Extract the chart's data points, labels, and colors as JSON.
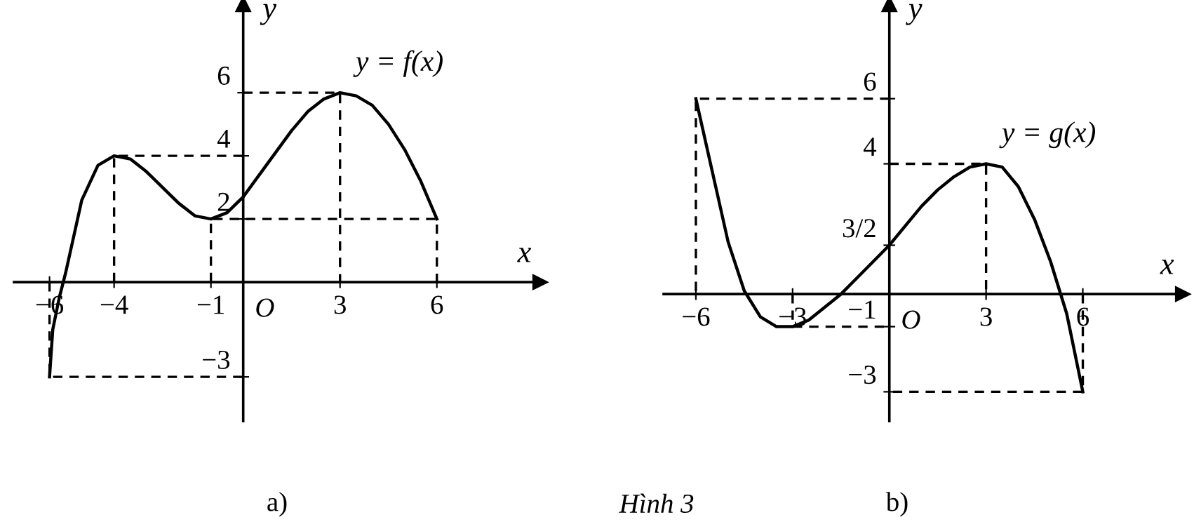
{
  "chart_data": [
    {
      "type": "line",
      "xlabel": "x",
      "ylabel": "y",
      "xlim": [
        -7.1,
        9.2
      ],
      "ylim": [
        -4.4,
        8.8
      ],
      "xticks": [
        {
          "value": -6,
          "label": "−6"
        },
        {
          "value": -4,
          "label": "−4"
        },
        {
          "value": -1,
          "label": "−1"
        },
        3,
        6
      ],
      "yticks": [
        {
          "value": -3,
          "label": "−3"
        },
        2,
        4,
        6
      ],
      "grid": false,
      "legend": false,
      "marker": "none",
      "series": [
        {
          "color": "#000000",
          "line_style": "solid",
          "x": [
            -6,
            -5.9,
            -5.7,
            -5.5,
            -5,
            -4.5,
            -4,
            -3.5,
            -3,
            -2.5,
            -2,
            -1.5,
            -1,
            -0.5,
            0,
            0.5,
            1,
            1.5,
            2,
            2.5,
            3,
            3.5,
            4,
            4.5,
            5,
            5.5,
            6
          ],
          "values": [
            -3,
            -1.5,
            -0.5,
            0.3,
            2.6,
            3.7,
            4,
            3.9,
            3.5,
            3.0,
            2.5,
            2.1,
            2,
            2.2,
            2.7,
            3.4,
            4.1,
            4.8,
            5.4,
            5.8,
            6,
            5.9,
            5.6,
            5.0,
            4.2,
            3.2,
            2
          ]
        },
        {
          "color": "#000000",
          "line_style": "dashed",
          "x": [
            -6,
            -6,
            0
          ],
          "values": [
            0,
            -3,
            -3
          ]
        },
        {
          "color": "#000000",
          "line_style": "dashed",
          "x": [
            -4,
            -4,
            0
          ],
          "values": [
            0,
            4,
            4
          ]
        },
        {
          "color": "#000000",
          "line_style": "dashed",
          "x": [
            -1,
            -1,
            6,
            6
          ],
          "values": [
            0,
            2,
            2,
            0
          ]
        },
        {
          "color": "#000000",
          "line_style": "dashed",
          "x": [
            0,
            3,
            3
          ],
          "values": [
            6,
            6,
            0
          ]
        }
      ],
      "annotations": [
        {
          "text": "y = f(x)",
          "x": 3,
          "y": 6
        },
        "O",
        "a)"
      ]
    },
    {
      "type": "line",
      "xlabel": "x",
      "ylabel": "y",
      "xlim": [
        -7.0,
        9.1
      ],
      "ylim": [
        -3.9,
        8.9
      ],
      "xticks": [
        {
          "value": -6,
          "label": "−6"
        },
        {
          "value": -3,
          "label": "−3"
        },
        3,
        6
      ],
      "yticks": [
        {
          "value": -3,
          "label": "−3"
        },
        {
          "value": -1,
          "label": "−1"
        },
        {
          "value": 1.5,
          "label": "3/2"
        },
        4,
        6
      ],
      "grid": false,
      "legend": false,
      "marker": "none",
      "series": [
        {
          "color": "#000000",
          "line_style": "solid",
          "x": [
            -6,
            -5.5,
            -5,
            -4.5,
            -4,
            -3.5,
            -3,
            -2.5,
            -2,
            -1.5,
            -1,
            -0.5,
            0,
            0.5,
            1,
            1.5,
            2,
            2.5,
            3,
            3.5,
            4,
            4.5,
            5,
            5.5,
            6
          ],
          "values": [
            6,
            3.8,
            1.6,
            0.1,
            -0.7,
            -1,
            -1,
            -0.8,
            -0.4,
            0,
            0.5,
            1.0,
            1.5,
            2.1,
            2.7,
            3.2,
            3.6,
            3.9,
            4,
            3.9,
            3.3,
            2.3,
            1,
            -0.6,
            -3
          ]
        },
        {
          "color": "#000000",
          "line_style": "dashed",
          "x": [
            0,
            -6,
            -6
          ],
          "values": [
            6,
            6,
            0
          ]
        },
        {
          "color": "#000000",
          "line_style": "dashed",
          "x": [
            -3,
            -3,
            0
          ],
          "values": [
            0,
            -1,
            -1
          ]
        },
        {
          "color": "#000000",
          "line_style": "dashed",
          "x": [
            0,
            3,
            3
          ],
          "values": [
            4,
            4,
            0
          ]
        },
        {
          "color": "#000000",
          "line_style": "dashed",
          "x": [
            6,
            6,
            0
          ],
          "values": [
            0,
            -3,
            -3
          ]
        }
      ],
      "annotations": [
        {
          "text": "y = g(x)",
          "x": 3,
          "y": 4
        },
        "O",
        "b)",
        "Hình 3"
      ]
    }
  ]
}
